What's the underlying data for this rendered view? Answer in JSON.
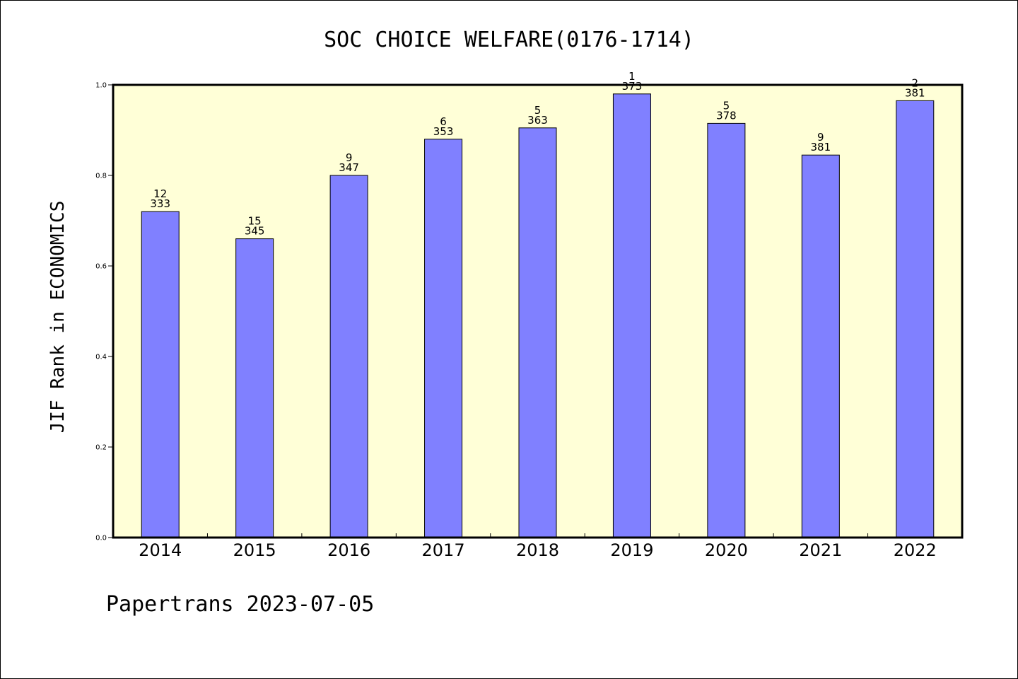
{
  "chart_data": {
    "type": "bar",
    "title": "SOC CHOICE WELFARE(0176-1714)",
    "xlabel": "",
    "ylabel": "JIF Rank in ECONOMICS",
    "ylim": [
      0,
      1.0
    ],
    "yticks": [
      "0.0",
      "0.2",
      "0.4",
      "0.6",
      "0.8",
      "1.0"
    ],
    "categories": [
      "2014",
      "2015",
      "2016",
      "2017",
      "2018",
      "2019",
      "2020",
      "2021",
      "2022"
    ],
    "values": [
      0.72,
      0.66,
      0.8,
      0.88,
      0.905,
      0.98,
      0.915,
      0.845,
      0.965
    ],
    "rank": [
      "12",
      "15",
      "9",
      "6",
      "5",
      "1",
      "5",
      "9",
      "2"
    ],
    "total": [
      "333",
      "345",
      "347",
      "353",
      "363",
      "373",
      "378",
      "381",
      "381"
    ],
    "grid": false,
    "legend": "none",
    "colors": {
      "bar": "#8080ff",
      "plot_background": "#ffffd7",
      "axis": "#000000"
    }
  },
  "footer": {
    "text": "Papertrans 2023-07-05"
  }
}
